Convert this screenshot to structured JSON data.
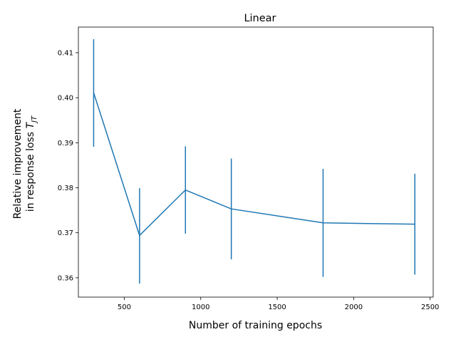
{
  "chart_data": {
    "type": "line",
    "title": "Linear",
    "xlabel": "Number of training epochs",
    "ylabel_line1": "Relative improvement",
    "ylabel_line2_prefix": "in response loss ",
    "ylabel_symbol": "T",
    "ylabel_subscript": "JT",
    "xlim": [
      200,
      2520
    ],
    "ylim": [
      0.3557,
      0.4157
    ],
    "xticks": [
      500,
      1000,
      1500,
      2000,
      2500
    ],
    "xtick_labels": [
      "500",
      "1000",
      "1500",
      "2000",
      "2500"
    ],
    "yticks": [
      0.36,
      0.37,
      0.38,
      0.39,
      0.4,
      0.41
    ],
    "ytick_labels": [
      "0.36",
      "0.37",
      "0.38",
      "0.39",
      "0.40",
      "0.41"
    ],
    "grid": false,
    "color": "#1f77b4",
    "series": [
      {
        "x": [
          300,
          600,
          900,
          1200,
          1800,
          2400
        ],
        "y": [
          0.4011,
          0.3694,
          0.3795,
          0.3753,
          0.3722,
          0.3719
        ],
        "err_low": [
          0.3891,
          0.3587,
          0.3698,
          0.3641,
          0.3602,
          0.3607
        ],
        "err_high": [
          0.413,
          0.3799,
          0.3892,
          0.3865,
          0.3842,
          0.3831
        ]
      }
    ]
  }
}
